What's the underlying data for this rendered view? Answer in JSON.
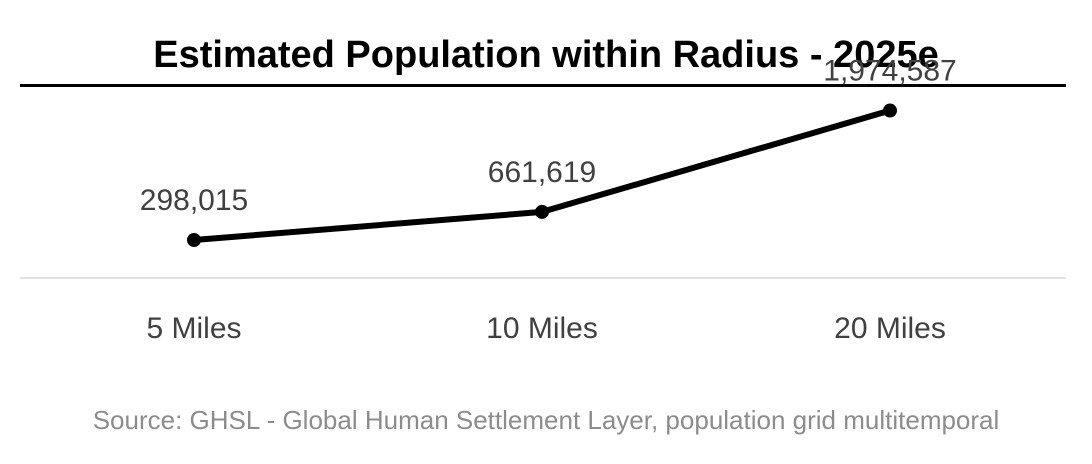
{
  "chart_data": {
    "type": "line",
    "title": "Estimated Population within Radius - 2025e",
    "categories": [
      "5 Miles",
      "10 Miles",
      "20 Miles"
    ],
    "values": [
      298015,
      661619,
      1974587
    ],
    "data_labels": [
      "298,015",
      "661,619",
      "1,974,587"
    ],
    "xlabel": "",
    "ylabel": "",
    "ylim": [
      0,
      2500000
    ],
    "grid": false,
    "legend": "none",
    "colors": {
      "line": "#000000",
      "baseline": "#d9d9d9",
      "label": "#404040"
    }
  },
  "source": "Source: GHSL - Global Human Settlement Layer, population grid multitemporal"
}
